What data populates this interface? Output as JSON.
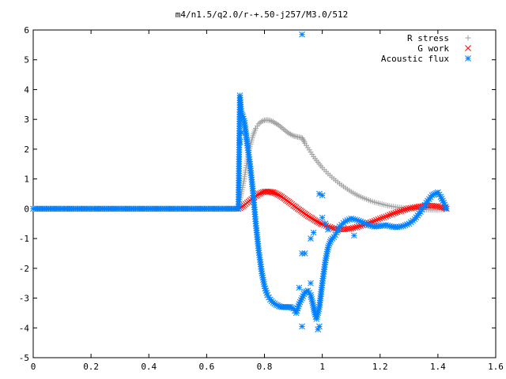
{
  "chart_data": {
    "type": "scatter",
    "title": "m4/n1.5/q2.0/r-+.50-j257/M3.0/512",
    "xlabel": "",
    "ylabel": "",
    "xlim": [
      0,
      1.6
    ],
    "ylim": [
      -5,
      6
    ],
    "grid": false,
    "legend_position": "top-right",
    "x_ticks": [
      "0",
      "0.2",
      "0.4",
      "0.6",
      "0.8",
      "1",
      "1.2",
      "1.4",
      "1.6"
    ],
    "y_ticks": [
      "-5",
      "-4",
      "-3",
      "-2",
      "-1",
      "0",
      "1",
      "2",
      "3",
      "4",
      "5",
      "6"
    ],
    "series": [
      {
        "name": "R stress",
        "marker": "plus",
        "color": "#a0a0a0",
        "x": [
          0.0,
          0.1,
          0.2,
          0.3,
          0.4,
          0.5,
          0.6,
          0.7,
          0.71,
          0.72,
          0.73,
          0.74,
          0.75,
          0.76,
          0.77,
          0.78,
          0.79,
          0.8,
          0.81,
          0.82,
          0.83,
          0.84,
          0.85,
          0.86,
          0.87,
          0.88,
          0.89,
          0.9,
          0.91,
          0.92,
          0.93,
          0.935,
          0.94,
          0.95,
          0.96,
          0.97,
          0.98,
          0.99,
          1.0,
          1.02,
          1.04,
          1.06,
          1.08,
          1.1,
          1.12,
          1.14,
          1.16,
          1.18,
          1.2,
          1.22,
          1.24,
          1.26,
          1.28,
          1.3,
          1.32,
          1.34,
          1.36,
          1.38,
          1.4,
          1.42,
          1.43
        ],
        "y": [
          0.0,
          0.0,
          0.0,
          0.0,
          0.0,
          0.0,
          0.0,
          0.0,
          0.1,
          0.5,
          1.0,
          1.6,
          2.1,
          2.45,
          2.7,
          2.85,
          2.93,
          2.97,
          2.98,
          2.96,
          2.92,
          2.86,
          2.8,
          2.72,
          2.64,
          2.56,
          2.5,
          2.45,
          2.42,
          2.4,
          2.38,
          2.3,
          2.2,
          2.05,
          1.9,
          1.75,
          1.62,
          1.5,
          1.38,
          1.18,
          1.0,
          0.84,
          0.7,
          0.57,
          0.46,
          0.37,
          0.29,
          0.22,
          0.17,
          0.12,
          0.08,
          0.05,
          0.03,
          0.01,
          0.0,
          -0.02,
          -0.03,
          -0.04,
          -0.04,
          -0.03,
          0.0
        ]
      },
      {
        "name": "G work",
        "marker": "cross",
        "color": "#ff0000",
        "x": [
          0.71,
          0.72,
          0.73,
          0.74,
          0.75,
          0.76,
          0.77,
          0.78,
          0.79,
          0.8,
          0.81,
          0.82,
          0.83,
          0.84,
          0.85,
          0.86,
          0.87,
          0.88,
          0.89,
          0.9,
          0.91,
          0.92,
          0.93,
          0.94,
          0.95,
          0.96,
          0.97,
          0.98,
          0.99,
          1.0,
          1.02,
          1.04,
          1.06,
          1.08,
          1.1,
          1.12,
          1.14,
          1.16,
          1.18,
          1.2,
          1.22,
          1.24,
          1.26,
          1.28,
          1.3,
          1.32,
          1.34,
          1.36,
          1.38,
          1.4,
          1.42,
          1.43
        ],
        "y": [
          0.0,
          0.05,
          0.12,
          0.2,
          0.28,
          0.36,
          0.43,
          0.49,
          0.54,
          0.57,
          0.58,
          0.57,
          0.55,
          0.51,
          0.46,
          0.4,
          0.33,
          0.26,
          0.19,
          0.11,
          0.04,
          -0.03,
          -0.1,
          -0.17,
          -0.24,
          -0.3,
          -0.36,
          -0.42,
          -0.47,
          -0.52,
          -0.6,
          -0.66,
          -0.69,
          -0.69,
          -0.66,
          -0.61,
          -0.55,
          -0.48,
          -0.41,
          -0.33,
          -0.26,
          -0.18,
          -0.11,
          -0.05,
          0.01,
          0.05,
          0.08,
          0.1,
          0.1,
          0.08,
          0.04,
          0.0
        ]
      },
      {
        "name": "Acoustic flux",
        "marker": "star",
        "color": "#0080ff",
        "x": [
          0.0,
          0.02,
          0.04,
          0.06,
          0.08,
          0.1,
          0.12,
          0.14,
          0.16,
          0.18,
          0.2,
          0.22,
          0.24,
          0.26,
          0.28,
          0.3,
          0.32,
          0.34,
          0.36,
          0.38,
          0.4,
          0.42,
          0.44,
          0.46,
          0.48,
          0.5,
          0.52,
          0.54,
          0.56,
          0.58,
          0.6,
          0.62,
          0.64,
          0.66,
          0.68,
          0.7,
          0.71,
          0.715,
          0.72,
          0.725,
          0.73,
          0.735,
          0.74,
          0.75,
          0.76,
          0.77,
          0.78,
          0.79,
          0.8,
          0.81,
          0.82,
          0.83,
          0.84,
          0.85,
          0.86,
          0.87,
          0.88,
          0.89,
          0.9,
          0.91,
          0.92,
          0.93,
          0.94,
          0.95,
          0.96,
          0.965,
          0.97,
          0.975,
          0.98,
          0.99,
          1.0,
          1.01,
          1.02,
          1.03,
          1.04,
          1.05,
          1.06,
          1.08,
          1.1,
          1.12,
          1.14,
          1.16,
          1.18,
          1.2,
          1.22,
          1.24,
          1.26,
          1.28,
          1.3,
          1.32,
          1.34,
          1.36,
          1.38,
          1.39,
          1.4,
          1.41,
          1.42,
          1.43,
          0.715,
          0.72,
          0.93,
          0.92,
          0.93,
          0.96,
          0.97,
          0.99,
          1.0,
          1.0,
          1.01,
          1.02,
          0.99,
          0.985,
          0.93,
          0.96,
          1.11,
          0.94
        ],
        "y": [
          0.0,
          0.0,
          0.0,
          0.0,
          0.0,
          0.0,
          0.0,
          0.0,
          0.0,
          0.0,
          0.0,
          0.0,
          0.0,
          0.0,
          0.0,
          0.0,
          0.0,
          0.0,
          0.0,
          0.0,
          0.0,
          0.0,
          0.0,
          0.0,
          0.0,
          0.0,
          0.0,
          0.0,
          0.0,
          0.0,
          0.0,
          0.0,
          0.0,
          0.0,
          0.0,
          0.0,
          0.0,
          3.8,
          3.2,
          3.1,
          2.95,
          2.6,
          2.2,
          1.5,
          0.6,
          -0.5,
          -1.4,
          -2.1,
          -2.6,
          -2.9,
          -3.05,
          -3.15,
          -3.22,
          -3.27,
          -3.3,
          -3.3,
          -3.3,
          -3.3,
          -3.35,
          -3.5,
          -3.2,
          -3.0,
          -2.8,
          -2.75,
          -2.9,
          -3.1,
          -3.3,
          -3.55,
          -3.7,
          -3.3,
          -2.5,
          -1.8,
          -1.3,
          -1.05,
          -0.95,
          -0.8,
          -0.6,
          -0.42,
          -0.33,
          -0.38,
          -0.45,
          -0.55,
          -0.6,
          -0.58,
          -0.55,
          -0.6,
          -0.62,
          -0.58,
          -0.5,
          -0.35,
          -0.1,
          0.2,
          0.45,
          0.5,
          0.55,
          0.4,
          0.2,
          0.0,
          2.25,
          2.55,
          5.85,
          -2.65,
          -1.5,
          -1.0,
          -0.8,
          0.5,
          0.45,
          -0.3,
          -0.5,
          -0.7,
          -3.95,
          -4.05,
          -3.95,
          -2.5,
          -0.9,
          -1.5
        ]
      }
    ]
  }
}
